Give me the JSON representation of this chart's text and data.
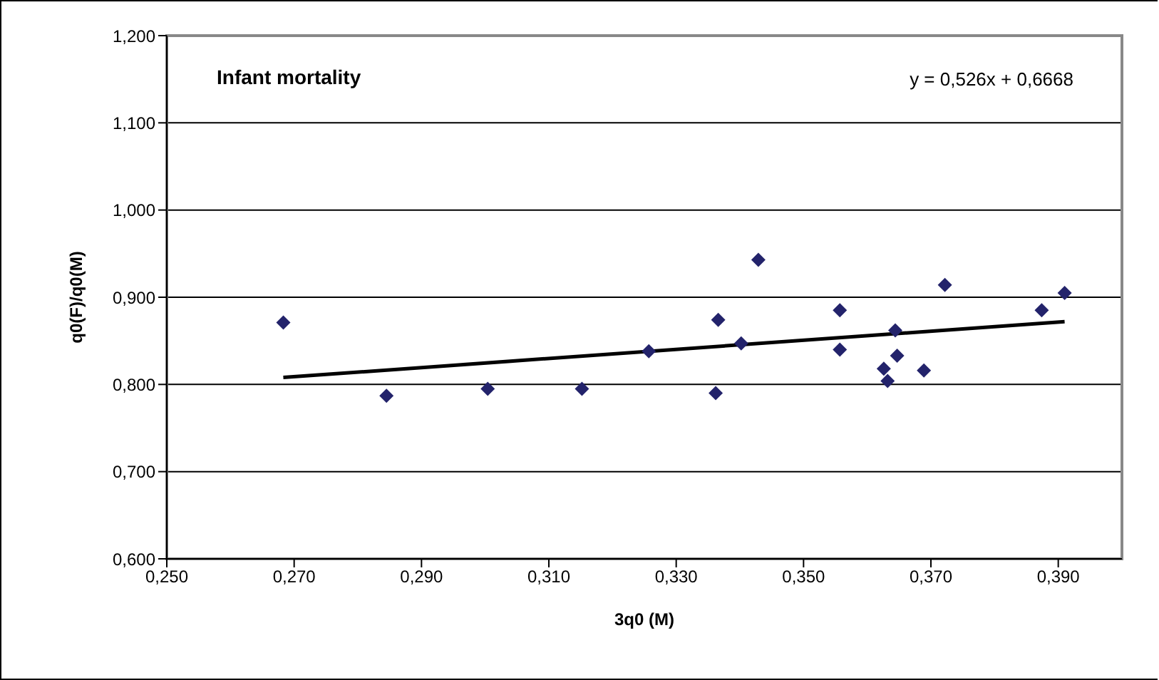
{
  "chart_data": {
    "type": "scatter",
    "title": "Infant mortality",
    "xlabel": "3q0 (M)",
    "ylabel": "q0(F)/q0(M)",
    "annotations": [
      "y = 0,526x + 0,6668"
    ],
    "series": [
      {
        "color": "#23236b",
        "marker": "diamond",
        "x": [
          0.2683,
          0.2845,
          0.3004,
          0.3152,
          0.3257,
          0.3362,
          0.3366,
          0.3402,
          0.3429,
          0.3557,
          0.3557,
          0.3626,
          0.3632,
          0.3644,
          0.3647,
          0.3689,
          0.3722,
          0.3874,
          0.391
        ],
        "values": [
          0.871,
          0.787,
          0.795,
          0.795,
          0.838,
          0.79,
          0.874,
          0.847,
          0.943,
          0.885,
          0.84,
          0.818,
          0.804,
          0.862,
          0.833,
          0.816,
          0.914,
          0.885,
          0.905
        ]
      },
      {
        "type": "line",
        "color": "#000000",
        "marker": "none",
        "x": [
          0.2683,
          0.391
        ],
        "values": [
          0.808,
          0.872
        ]
      }
    ],
    "xlim": [
      0.25,
      0.4
    ],
    "xticks": [
      {
        "value": 0.25,
        "label": "0,250"
      },
      {
        "value": 0.27,
        "label": "0,270"
      },
      {
        "value": 0.29,
        "label": "0,290"
      },
      {
        "value": 0.31,
        "label": "0,310"
      },
      {
        "value": 0.33,
        "label": "0,330"
      },
      {
        "value": 0.35,
        "label": "0,350"
      },
      {
        "value": 0.37,
        "label": "0,370"
      },
      {
        "value": 0.39,
        "label": "0,390"
      }
    ],
    "ylim": [
      0.6,
      1.2
    ],
    "yticks": [
      {
        "value": 0.6,
        "label": "0,600"
      },
      {
        "value": 0.7,
        "label": "0,700"
      },
      {
        "value": 0.8,
        "label": "0,800"
      },
      {
        "value": 0.9,
        "label": "0,900"
      },
      {
        "value": 1.0,
        "label": "1,000"
      },
      {
        "value": 1.1,
        "label": "1,100"
      },
      {
        "value": 1.2,
        "label": "1,200"
      }
    ],
    "grid": "y",
    "legend": false
  }
}
